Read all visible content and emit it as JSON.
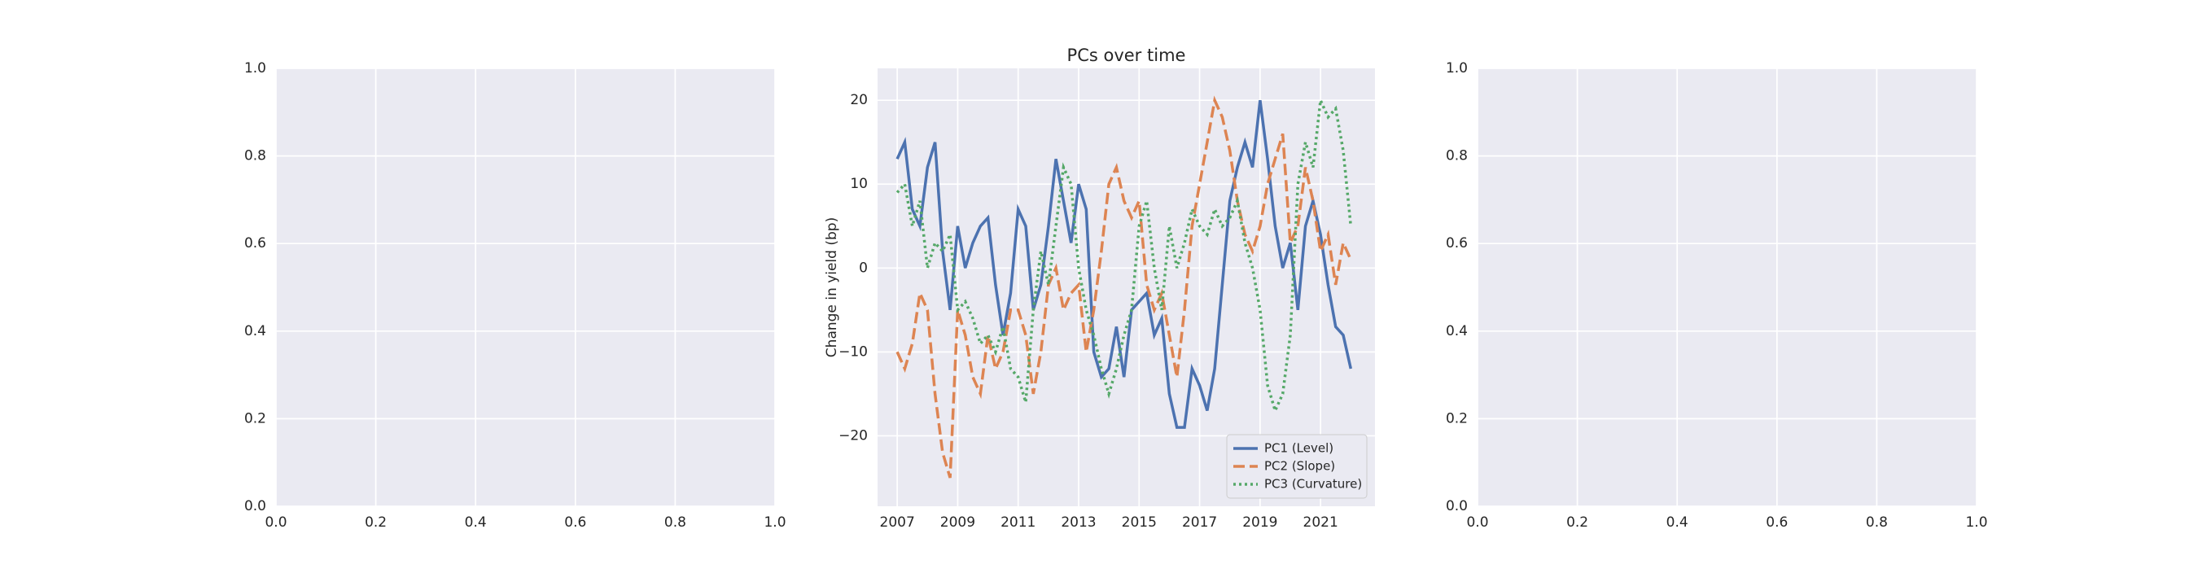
{
  "chart_data": [
    {
      "type": "line",
      "xlim": [
        0,
        1
      ],
      "ylim": [
        0,
        1
      ],
      "xticks": [
        {
          "value": 0,
          "label": "0.0"
        },
        {
          "value": 0.2,
          "label": "0.2"
        },
        {
          "value": 0.4,
          "label": "0.4"
        },
        {
          "value": 0.6,
          "label": "0.6"
        },
        {
          "value": 0.8,
          "label": "0.8"
        },
        {
          "value": 1,
          "label": "1.0"
        }
      ],
      "yticks": [
        {
          "value": 0,
          "label": "0.0"
        },
        {
          "value": 0.2,
          "label": "0.2"
        },
        {
          "value": 0.4,
          "label": "0.4"
        },
        {
          "value": 0.6,
          "label": "0.6"
        },
        {
          "value": 0.8,
          "label": "0.8"
        },
        {
          "value": 1,
          "label": "1.0"
        }
      ],
      "grid": true
    },
    {
      "type": "line",
      "title": "PCs over time",
      "y_label": "Change in yield (bp)",
      "x": [
        2007,
        2007.25,
        2007.5,
        2007.75,
        2008,
        2008.25,
        2008.5,
        2008.75,
        2009,
        2009.25,
        2009.5,
        2009.75,
        2010,
        2010.25,
        2010.5,
        2010.75,
        2011,
        2011.25,
        2011.5,
        2011.75,
        2012,
        2012.25,
        2012.5,
        2012.75,
        2013,
        2013.25,
        2013.5,
        2013.75,
        2014,
        2014.25,
        2014.5,
        2014.75,
        2015,
        2015.25,
        2015.5,
        2015.75,
        2016,
        2016.25,
        2016.5,
        2016.75,
        2017,
        2017.25,
        2017.5,
        2017.75,
        2018,
        2018.25,
        2018.5,
        2018.75,
        2019,
        2019.25,
        2019.5,
        2019.75,
        2020,
        2020.25,
        2020.5,
        2020.75,
        2021,
        2021.25,
        2021.5,
        2021.75,
        2022
      ],
      "series": [
        {
          "name": "PC1 (Level)",
          "color": "#4c72b0",
          "dash": "solid",
          "values": [
            13,
            15,
            7,
            5,
            12,
            15,
            2,
            -5,
            5,
            0,
            3,
            5,
            6,
            -2,
            -8,
            -3,
            7,
            5,
            -5,
            -2,
            5,
            13,
            8,
            3,
            10,
            7,
            -10,
            -13,
            -12,
            -7,
            -13,
            -5,
            -4,
            -3,
            -8,
            -6,
            -15,
            -19,
            -19,
            -12,
            -14,
            -17,
            -12,
            -2,
            8,
            12,
            15,
            12,
            20,
            13,
            5,
            0,
            3,
            -5,
            5,
            8,
            4,
            -2,
            -7,
            -8,
            -12
          ]
        },
        {
          "name": "PC2 (Slope)",
          "color": "#dd8452",
          "dash": "dashed",
          "values": [
            -10,
            -12,
            -9,
            -3,
            -5,
            -15,
            -22,
            -25,
            -5,
            -8,
            -13,
            -15,
            -8,
            -12,
            -10,
            -5,
            -5,
            -8,
            -15,
            -10,
            -2,
            0,
            -5,
            -3,
            -2,
            -10,
            -5,
            2,
            10,
            12,
            8,
            6,
            8,
            -2,
            -5,
            -3,
            -8,
            -13,
            -5,
            5,
            10,
            15,
            20,
            18,
            14,
            8,
            4,
            2,
            5,
            10,
            13,
            16,
            3,
            5,
            12,
            8,
            2,
            4,
            -2,
            3,
            1
          ]
        },
        {
          "name": "PC3 (Curvature)",
          "color": "#55a868",
          "dash": "dotted",
          "values": [
            9,
            10,
            5,
            8,
            0,
            3,
            2,
            4,
            -5,
            -4,
            -6,
            -9,
            -8,
            -10,
            -7,
            -12,
            -13,
            -16,
            -5,
            2,
            -2,
            5,
            12,
            10,
            0,
            -5,
            -8,
            -12,
            -15,
            -12,
            -8,
            -5,
            5,
            8,
            0,
            -5,
            5,
            0,
            3,
            7,
            5,
            4,
            7,
            5,
            6,
            8,
            3,
            0,
            -5,
            -14,
            -17,
            -15,
            -8,
            10,
            15,
            12,
            20,
            18,
            19,
            14,
            5
          ]
        }
      ],
      "xlim": [
        2006.35,
        2022.8
      ],
      "ylim": [
        -28.4,
        23.8
      ],
      "xticks": [
        2007,
        2009,
        2011,
        2013,
        2015,
        2017,
        2019,
        2021
      ],
      "yticks": [
        {
          "value": -20,
          "label": "−20"
        },
        {
          "value": -10,
          "label": "−10"
        },
        0,
        10,
        20
      ],
      "grid": true,
      "legend": "lower right"
    },
    {
      "type": "line",
      "xlim": [
        0,
        1
      ],
      "ylim": [
        0,
        1
      ],
      "xticks": [
        {
          "value": 0,
          "label": "0.0"
        },
        {
          "value": 0.2,
          "label": "0.2"
        },
        {
          "value": 0.4,
          "label": "0.4"
        },
        {
          "value": 0.6,
          "label": "0.6"
        },
        {
          "value": 0.8,
          "label": "0.8"
        },
        {
          "value": 1,
          "label": "1.0"
        }
      ],
      "yticks": [
        {
          "value": 0,
          "label": "0.0"
        },
        {
          "value": 0.2,
          "label": "0.2"
        },
        {
          "value": 0.4,
          "label": "0.4"
        },
        {
          "value": 0.6,
          "label": "0.6"
        },
        {
          "value": 0.8,
          "label": "0.8"
        },
        {
          "value": 1,
          "label": "1.0"
        }
      ],
      "grid": true
    }
  ]
}
